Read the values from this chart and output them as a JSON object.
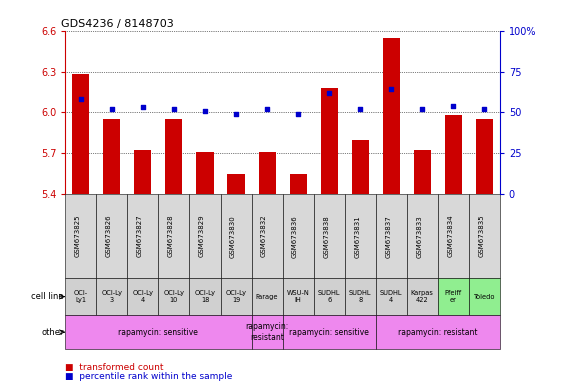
{
  "title": "GDS4236 / 8148703",
  "samples": [
    "GSM673825",
    "GSM673826",
    "GSM673827",
    "GSM673828",
    "GSM673829",
    "GSM673830",
    "GSM673832",
    "GSM673836",
    "GSM673838",
    "GSM673831",
    "GSM673837",
    "GSM673833",
    "GSM673834",
    "GSM673835"
  ],
  "bar_values": [
    6.28,
    5.95,
    5.72,
    5.95,
    5.71,
    5.55,
    5.71,
    5.55,
    6.18,
    5.8,
    6.55,
    5.72,
    5.98,
    5.95
  ],
  "dot_values": [
    58,
    52,
    53,
    52,
    51,
    49,
    52,
    49,
    62,
    52,
    64,
    52,
    54,
    52
  ],
  "ylim_left": [
    5.4,
    6.6
  ],
  "ylim_right": [
    0,
    100
  ],
  "yticks_left": [
    5.4,
    5.7,
    6.0,
    6.3,
    6.6
  ],
  "yticks_right": [
    0,
    25,
    50,
    75,
    100
  ],
  "bar_color": "#cc0000",
  "dot_color": "#0000cc",
  "cell_line_labels": [
    "OCI-\nLy1",
    "OCI-Ly\n3",
    "OCI-Ly\n4",
    "OCI-Ly\n10",
    "OCI-Ly\n18",
    "OCI-Ly\n19",
    "Farage",
    "WSU-N\nIH",
    "SUDHL\n6",
    "SUDHL\n8",
    "SUDHL\n4",
    "Karpas\n422",
    "Pfeiff\ner",
    "Toledo"
  ],
  "cell_line_bg": [
    "#d0d0d0",
    "#d0d0d0",
    "#d0d0d0",
    "#d0d0d0",
    "#d0d0d0",
    "#d0d0d0",
    "#d0d0d0",
    "#d0d0d0",
    "#d0d0d0",
    "#d0d0d0",
    "#d0d0d0",
    "#d0d0d0",
    "#90ee90",
    "#90ee90"
  ],
  "other_data": [
    [
      0,
      5,
      "rapamycin: sensitive",
      "#ee88ee"
    ],
    [
      6,
      6,
      "rapamycin:\nresistant",
      "#ee88ee"
    ],
    [
      7,
      9,
      "rapamycin: sensitive",
      "#ee88ee"
    ],
    [
      10,
      13,
      "rapamycin: resistant",
      "#ee88ee"
    ]
  ],
  "bg_color": "#ffffff",
  "legend_red_text": "transformed count",
  "legend_blue_text": "percentile rank within the sample"
}
